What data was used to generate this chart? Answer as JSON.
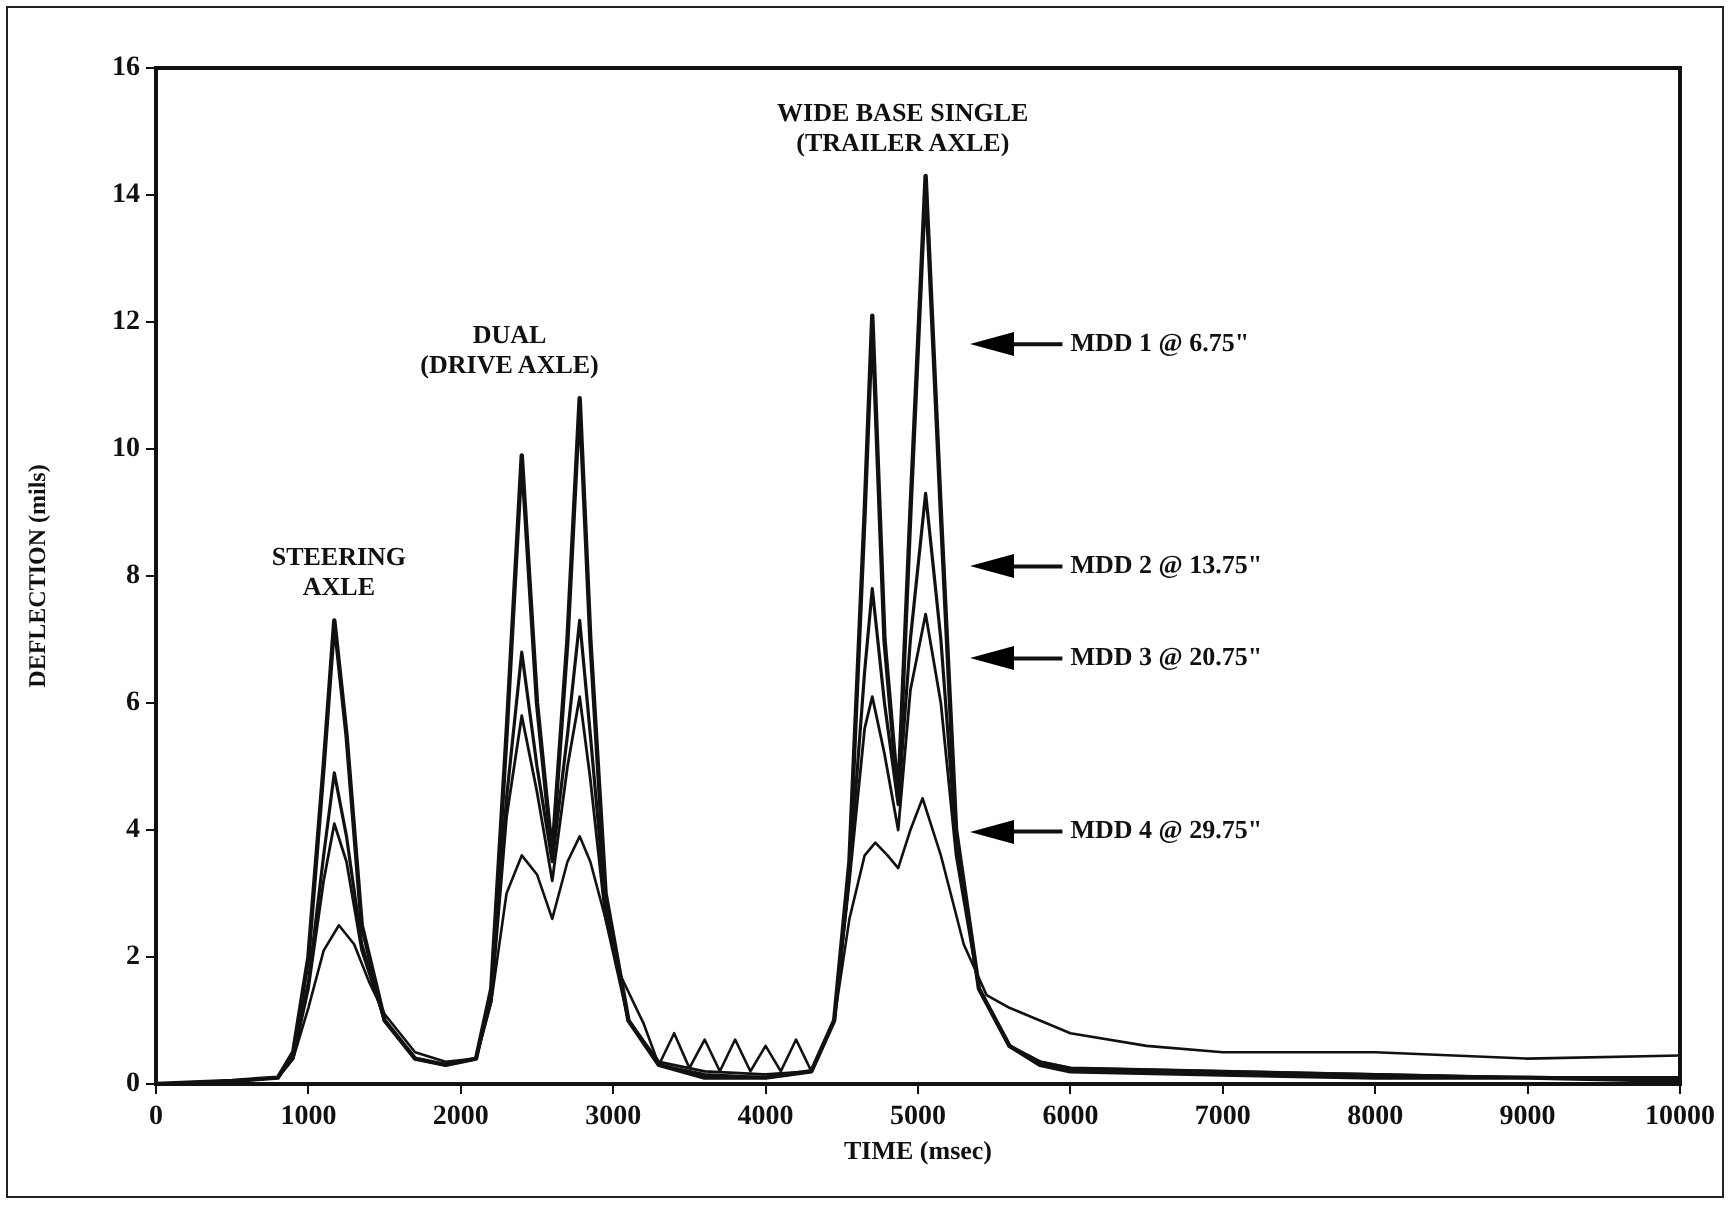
{
  "chart_data": {
    "type": "line",
    "xlabel": "TIME (msec)",
    "ylabel": "DEFLECTION (mils)",
    "xlim": [
      0,
      10000
    ],
    "xticks": [
      0,
      1000,
      2000,
      3000,
      4000,
      5000,
      6000,
      7000,
      8000,
      9000,
      10000
    ],
    "ylim": [
      0,
      16
    ],
    "yticks": [
      0,
      2,
      4,
      6,
      8,
      10,
      12,
      14,
      16
    ],
    "grid": false,
    "legend": "right",
    "marker": "none",
    "line_style": "solid",
    "annotations": [
      "STEERING\nAXLE",
      "DUAL\n(DRIVE AXLE)",
      "WIDE BASE SINGLE\n(TRAILER AXLE)"
    ],
    "series": [
      {
        "name": "MDD 1 @ 6.75\"",
        "color": "#111111",
        "x": [
          0,
          500,
          800,
          900,
          1000,
          1100,
          1170,
          1250,
          1350,
          1500,
          1700,
          1900,
          2100,
          2200,
          2300,
          2400,
          2500,
          2600,
          2700,
          2780,
          2850,
          2950,
          3100,
          3300,
          3600,
          4000,
          4300,
          4450,
          4550,
          4650,
          4700,
          4780,
          4870,
          4950,
          5050,
          5150,
          5250,
          5400,
          5600,
          5800,
          6000,
          7000,
          8000,
          9000,
          10000
        ],
        "values": [
          0,
          0.05,
          0.1,
          0.5,
          2.0,
          5.0,
          7.3,
          5.5,
          2.5,
          1.0,
          0.4,
          0.3,
          0.4,
          1.5,
          5.5,
          9.9,
          6.0,
          3.6,
          7.0,
          10.8,
          7.0,
          3.0,
          1.0,
          0.3,
          0.1,
          0.1,
          0.2,
          1.0,
          3.5,
          9.0,
          12.1,
          7.0,
          4.5,
          9.0,
          14.3,
          9.0,
          4.0,
          1.5,
          0.6,
          0.3,
          0.2,
          0.15,
          0.1,
          0.1,
          0.05
        ]
      },
      {
        "name": "MDD 2 @ 13.75\"",
        "color": "#111111",
        "x": [
          0,
          500,
          800,
          900,
          1000,
          1100,
          1170,
          1250,
          1350,
          1500,
          1700,
          1900,
          2100,
          2200,
          2300,
          2400,
          2500,
          2600,
          2700,
          2780,
          2850,
          2950,
          3100,
          3300,
          3600,
          4000,
          4300,
          4450,
          4550,
          4650,
          4700,
          4780,
          4870,
          4950,
          5050,
          5150,
          5250,
          5400,
          5600,
          5800,
          6000,
          7000,
          8000,
          9000,
          10000
        ],
        "values": [
          0,
          0.05,
          0.1,
          0.45,
          1.6,
          3.6,
          4.9,
          3.9,
          2.2,
          1.0,
          0.4,
          0.3,
          0.4,
          1.4,
          4.5,
          6.8,
          5.0,
          3.5,
          5.5,
          7.3,
          5.5,
          2.8,
          1.0,
          0.3,
          0.15,
          0.1,
          0.2,
          1.0,
          3.3,
          6.5,
          7.8,
          6.0,
          4.4,
          7.0,
          9.3,
          7.0,
          3.8,
          1.5,
          0.6,
          0.35,
          0.25,
          0.2,
          0.15,
          0.1,
          0.1
        ]
      },
      {
        "name": "MDD 3 @ 20.75\"",
        "color": "#111111",
        "x": [
          0,
          500,
          800,
          900,
          1000,
          1100,
          1170,
          1250,
          1350,
          1500,
          1700,
          1900,
          2100,
          2200,
          2300,
          2400,
          2500,
          2600,
          2700,
          2780,
          2850,
          2950,
          3100,
          3300,
          3600,
          4000,
          4300,
          4450,
          4550,
          4650,
          4700,
          4780,
          4870,
          4950,
          5050,
          5150,
          5250,
          5400,
          5600,
          5800,
          6000,
          7000,
          8000,
          9000,
          10000
        ],
        "values": [
          0,
          0.05,
          0.1,
          0.4,
          1.5,
          3.2,
          4.1,
          3.5,
          2.1,
          1.0,
          0.4,
          0.3,
          0.4,
          1.3,
          4.2,
          5.8,
          4.6,
          3.2,
          5.0,
          6.1,
          4.8,
          2.6,
          1.0,
          0.35,
          0.2,
          0.15,
          0.2,
          1.0,
          3.2,
          5.6,
          6.1,
          5.2,
          4.0,
          6.2,
          7.4,
          6.0,
          3.6,
          1.5,
          0.6,
          0.35,
          0.25,
          0.2,
          0.15,
          0.1,
          0.1
        ]
      },
      {
        "name": "MDD 4 @ 29.75\"",
        "color": "#111111",
        "x": [
          0,
          500,
          800,
          900,
          1000,
          1100,
          1200,
          1300,
          1400,
          1500,
          1700,
          1900,
          2100,
          2200,
          2300,
          2400,
          2500,
          2600,
          2700,
          2780,
          2850,
          2950,
          3050,
          3200,
          3300,
          3400,
          3500,
          3600,
          3700,
          3800,
          3900,
          4000,
          4100,
          4200,
          4300,
          4450,
          4550,
          4650,
          4720,
          4800,
          4870,
          4950,
          5030,
          5150,
          5300,
          5450,
          5600,
          5800,
          6000,
          6500,
          7000,
          8000,
          9000,
          10000
        ],
        "values": [
          0,
          0.05,
          0.1,
          0.4,
          1.2,
          2.1,
          2.5,
          2.2,
          1.6,
          1.1,
          0.5,
          0.35,
          0.4,
          1.3,
          3.0,
          3.6,
          3.3,
          2.6,
          3.5,
          3.9,
          3.5,
          2.6,
          1.7,
          0.95,
          0.3,
          0.8,
          0.25,
          0.7,
          0.2,
          0.7,
          0.2,
          0.6,
          0.2,
          0.7,
          0.2,
          1.0,
          2.6,
          3.6,
          3.8,
          3.6,
          3.4,
          4.0,
          4.5,
          3.6,
          2.2,
          1.4,
          1.2,
          1.0,
          0.8,
          0.6,
          0.5,
          0.5,
          0.4,
          0.45
        ]
      }
    ]
  }
}
